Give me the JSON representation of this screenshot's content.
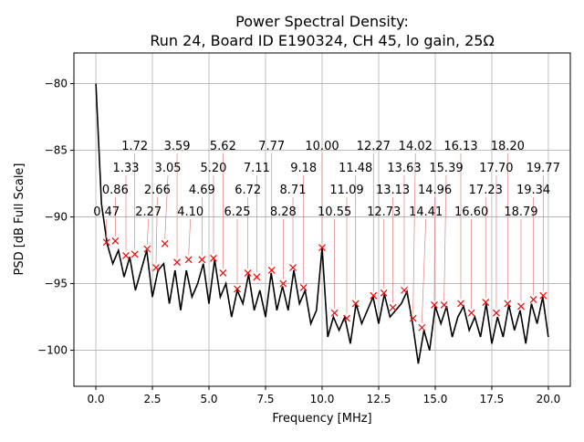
{
  "chart_data": {
    "type": "line",
    "title": "Power Spectral Density:",
    "subtitle": "Run 24, Board ID E190324, CH 45, lo gain, 25Ω",
    "xlabel": "Frequency [MHz]",
    "ylabel": "PSD [dB Full Scale]",
    "xlim": [
      -0.97,
      20.97
    ],
    "ylim": [
      -102.7,
      -77.7
    ],
    "xticks": [
      0.0,
      2.5,
      5.0,
      7.5,
      10.0,
      12.5,
      15.0,
      17.5,
      20.0
    ],
    "xtick_labels": [
      "0.0",
      "2.5",
      "5.0",
      "7.5",
      "10.0",
      "12.5",
      "15.0",
      "17.5",
      "20.0"
    ],
    "yticks": [
      -80,
      -85,
      -90,
      -95,
      -100
    ],
    "ytick_labels": [
      "−80",
      "−85",
      "−90",
      "−95",
      "−100"
    ],
    "grid": true,
    "line_color": "#000000",
    "marker_color": "#ff0000",
    "trace": {
      "x": [
        0,
        0.25,
        0.5,
        0.75,
        1,
        1.25,
        1.5,
        1.75,
        2,
        2.25,
        2.5,
        2.75,
        3,
        3.25,
        3.5,
        3.75,
        4,
        4.25,
        4.5,
        4.75,
        5,
        5.25,
        5.5,
        5.75,
        6,
        6.25,
        6.5,
        6.75,
        7,
        7.25,
        7.5,
        7.75,
        8,
        8.25,
        8.5,
        8.75,
        9,
        9.25,
        9.5,
        9.75,
        10,
        10.25,
        10.5,
        10.75,
        11,
        11.25,
        11.5,
        11.75,
        12,
        12.25,
        12.5,
        12.75,
        13,
        13.25,
        13.5,
        13.75,
        14,
        14.25,
        14.5,
        14.75,
        15,
        15.25,
        15.5,
        15.75,
        16,
        16.25,
        16.5,
        16.75,
        17,
        17.25,
        17.5,
        17.75,
        18,
        18.25,
        18.5,
        18.75,
        19,
        19.25,
        19.5,
        19.75,
        20
      ],
      "y": [
        -80,
        -89,
        -92,
        -93.5,
        -92.5,
        -94.5,
        -93,
        -95.5,
        -94,
        -92.5,
        -96,
        -94,
        -93.5,
        -96.5,
        -94,
        -97,
        -94,
        -96,
        -95,
        -93.5,
        -96.5,
        -93.2,
        -96,
        -95,
        -97.5,
        -95.5,
        -96.5,
        -94.3,
        -97,
        -95.5,
        -97.5,
        -94.2,
        -97,
        -95.2,
        -97,
        -94,
        -96.5,
        -95.5,
        -98,
        -97,
        -92.3,
        -99,
        -97.5,
        -98.5,
        -97.5,
        -99.5,
        -96.5,
        -98,
        -97,
        -96,
        -98,
        -95.8,
        -97.5,
        -97,
        -96.5,
        -95.6,
        -98,
        -101,
        -98.5,
        -100,
        -96.7,
        -98,
        -96.7,
        -99,
        -97.5,
        -96.7,
        -98.5,
        -97.5,
        -99,
        -96.5,
        -99.5,
        -97.5,
        -99,
        -96.6,
        -98.5,
        -97,
        -99.5,
        -96.5,
        -98,
        -96,
        -99
      ]
    },
    "peaks": [
      {
        "x": 0.47,
        "y": -91.9,
        "label": "0.47"
      },
      {
        "x": 0.86,
        "y": -91.8,
        "label": "0.86"
      },
      {
        "x": 1.33,
        "y": -92.9,
        "label": "1.33"
      },
      {
        "x": 1.72,
        "y": -92.8,
        "label": "1.72"
      },
      {
        "x": 2.27,
        "y": -92.4,
        "label": "2.27"
      },
      {
        "x": 2.66,
        "y": -93.8,
        "label": "2.66"
      },
      {
        "x": 3.05,
        "y": -92.0,
        "label": "3.05"
      },
      {
        "x": 3.59,
        "y": -93.4,
        "label": "3.59"
      },
      {
        "x": 4.1,
        "y": -93.2,
        "label": "4.10"
      },
      {
        "x": 4.69,
        "y": -93.2,
        "label": "4.69"
      },
      {
        "x": 5.2,
        "y": -93.1,
        "label": "5.20"
      },
      {
        "x": 5.62,
        "y": -94.2,
        "label": "5.62"
      },
      {
        "x": 6.25,
        "y": -95.4,
        "label": "6.25"
      },
      {
        "x": 6.72,
        "y": -94.2,
        "label": "6.72"
      },
      {
        "x": 7.11,
        "y": -94.5,
        "label": "7.11"
      },
      {
        "x": 7.77,
        "y": -94.0,
        "label": "7.77"
      },
      {
        "x": 8.28,
        "y": -95.0,
        "label": "8.28"
      },
      {
        "x": 8.71,
        "y": -93.8,
        "label": "8.71"
      },
      {
        "x": 9.18,
        "y": -95.3,
        "label": "9.18"
      },
      {
        "x": 10.0,
        "y": -92.3,
        "label": "10.00"
      },
      {
        "x": 10.55,
        "y": -97.2,
        "label": "10.55"
      },
      {
        "x": 11.09,
        "y": -97.6,
        "label": "11.09"
      },
      {
        "x": 11.48,
        "y": -96.5,
        "label": "11.48"
      },
      {
        "x": 12.27,
        "y": -95.9,
        "label": "12.27"
      },
      {
        "x": 12.73,
        "y": -95.7,
        "label": "12.73"
      },
      {
        "x": 13.13,
        "y": -96.8,
        "label": "13.13"
      },
      {
        "x": 13.63,
        "y": -95.5,
        "label": "13.63"
      },
      {
        "x": 14.02,
        "y": -97.6,
        "label": "14.02"
      },
      {
        "x": 14.41,
        "y": -98.3,
        "label": "14.41"
      },
      {
        "x": 14.96,
        "y": -96.6,
        "label": "14.96"
      },
      {
        "x": 15.39,
        "y": -96.6,
        "label": "15.39"
      },
      {
        "x": 16.13,
        "y": -96.5,
        "label": "16.13"
      },
      {
        "x": 16.6,
        "y": -97.2,
        "label": "16.60"
      },
      {
        "x": 17.23,
        "y": -96.4,
        "label": "17.23"
      },
      {
        "x": 17.7,
        "y": -97.2,
        "label": "17.70"
      },
      {
        "x": 18.2,
        "y": -96.5,
        "label": "18.20"
      },
      {
        "x": 18.79,
        "y": -96.7,
        "label": "18.79"
      },
      {
        "x": 19.34,
        "y": -96.2,
        "label": "19.34"
      },
      {
        "x": 19.77,
        "y": -95.9,
        "label": "19.77"
      }
    ]
  }
}
